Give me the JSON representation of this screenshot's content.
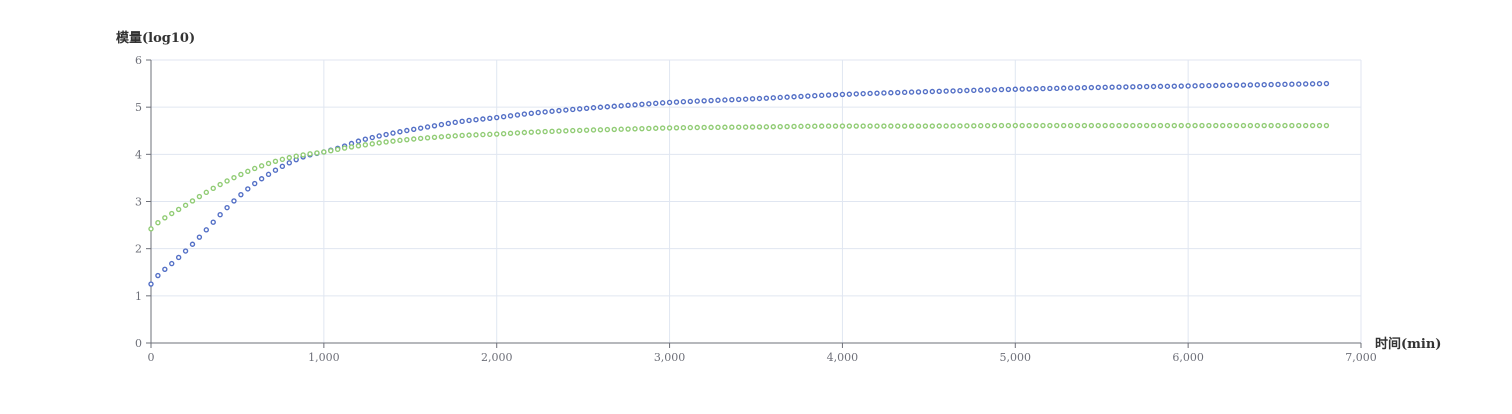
{
  "chart_data": {
    "type": "scatter",
    "title": "",
    "xlabel": "时间(min)",
    "ylabel": "模量(log10)",
    "xlim": [
      0,
      7000
    ],
    "ylim": [
      0,
      6
    ],
    "x_ticks": [
      0,
      1000,
      2000,
      3000,
      4000,
      5000,
      6000,
      7000
    ],
    "x_tick_labels": [
      "0",
      "1,000",
      "2,000",
      "3,000",
      "4,000",
      "5,000",
      "6,000",
      "7,000"
    ],
    "y_ticks": [
      0,
      1,
      2,
      3,
      4,
      5,
      6
    ],
    "y_tick_labels": [
      "0",
      "1",
      "2",
      "3",
      "4",
      "5",
      "6"
    ],
    "grid": true,
    "legend": "none",
    "x": [
      0,
      50,
      100,
      200,
      300,
      400,
      500,
      600,
      700,
      800,
      900,
      1000,
      1100,
      1200,
      1400,
      1600,
      1800,
      2000,
      2200,
      2500,
      2800,
      3000,
      3500,
      4000,
      4500,
      5000,
      5500,
      6000,
      6500,
      6800
    ],
    "series": [
      {
        "color": "#5470c6",
        "values": [
          1.25,
          1.47,
          1.62,
          1.95,
          2.32,
          2.72,
          3.08,
          3.38,
          3.62,
          3.82,
          3.97,
          4.05,
          4.15,
          4.28,
          4.45,
          4.58,
          4.7,
          4.78,
          4.87,
          4.97,
          5.05,
          5.1,
          5.18,
          5.27,
          5.33,
          5.38,
          5.42,
          5.45,
          5.48,
          5.5
        ]
      },
      {
        "color": "#91cc75",
        "values": [
          2.42,
          2.58,
          2.7,
          2.92,
          3.15,
          3.36,
          3.54,
          3.7,
          3.83,
          3.93,
          4.0,
          4.05,
          4.12,
          4.18,
          4.28,
          4.35,
          4.4,
          4.43,
          4.47,
          4.51,
          4.54,
          4.56,
          4.58,
          4.6,
          4.6,
          4.61,
          4.61,
          4.61,
          4.61,
          4.61
        ]
      }
    ]
  }
}
